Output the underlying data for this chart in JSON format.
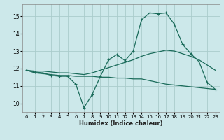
{
  "title": "",
  "xlabel": "Humidex (Indice chaleur)",
  "background_color": "#cce8ea",
  "grid_color": "#aacccc",
  "line_color": "#1a6b5a",
  "xlim": [
    -0.5,
    23.5
  ],
  "ylim": [
    9.5,
    15.7
  ],
  "xticks": [
    0,
    1,
    2,
    3,
    4,
    5,
    6,
    7,
    8,
    9,
    10,
    11,
    12,
    13,
    14,
    15,
    16,
    17,
    18,
    19,
    20,
    21,
    22,
    23
  ],
  "yticks": [
    10,
    11,
    12,
    13,
    14,
    15
  ],
  "line1_x": [
    0,
    1,
    2,
    3,
    4,
    5,
    6,
    7,
    8,
    9,
    10,
    11,
    12,
    13,
    14,
    15,
    16,
    17,
    18,
    19,
    20,
    21,
    22,
    23
  ],
  "line1_y": [
    11.9,
    11.8,
    11.75,
    11.6,
    11.55,
    11.55,
    11.1,
    9.75,
    10.5,
    11.55,
    12.5,
    12.8,
    12.45,
    13.0,
    14.8,
    15.2,
    15.15,
    15.2,
    14.55,
    13.4,
    12.85,
    12.4,
    11.2,
    10.8
  ],
  "line2_x": [
    0,
    1,
    2,
    3,
    4,
    5,
    6,
    7,
    8,
    9,
    10,
    11,
    12,
    13,
    14,
    15,
    16,
    17,
    18,
    19,
    20,
    21,
    22,
    23
  ],
  "line2_y": [
    11.9,
    11.75,
    11.7,
    11.65,
    11.6,
    11.6,
    11.55,
    11.55,
    11.55,
    11.5,
    11.5,
    11.45,
    11.45,
    11.4,
    11.4,
    11.3,
    11.2,
    11.1,
    11.05,
    11.0,
    10.95,
    10.9,
    10.85,
    10.8
  ],
  "line3_x": [
    0,
    1,
    2,
    3,
    4,
    5,
    6,
    7,
    8,
    9,
    10,
    11,
    12,
    13,
    14,
    15,
    16,
    17,
    18,
    19,
    20,
    21,
    22,
    23
  ],
  "line3_y": [
    11.9,
    11.85,
    11.85,
    11.8,
    11.75,
    11.75,
    11.7,
    11.65,
    11.75,
    11.9,
    12.05,
    12.2,
    12.35,
    12.5,
    12.7,
    12.85,
    12.95,
    13.05,
    13.0,
    12.85,
    12.7,
    12.5,
    12.2,
    11.9
  ]
}
